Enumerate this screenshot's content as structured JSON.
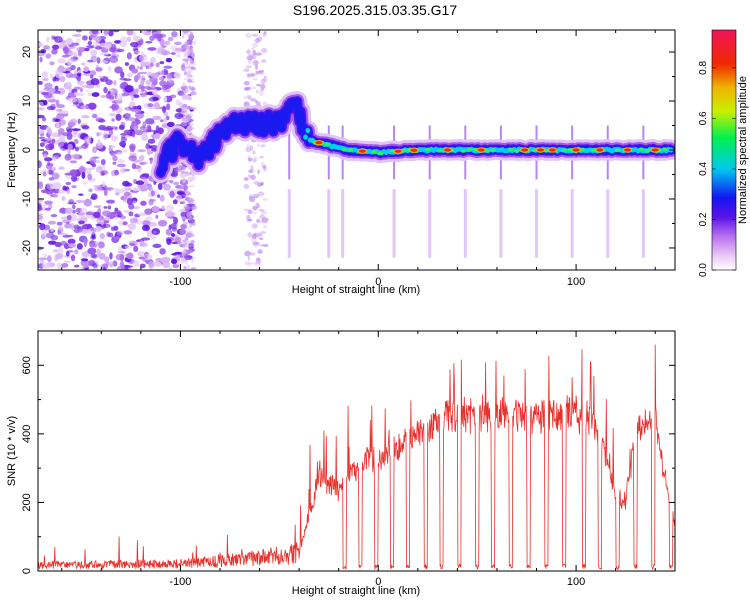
{
  "title": "S196.2025.315.03.35.G17",
  "chart_data": [
    {
      "type": "heatmap",
      "name": "spectrogram",
      "xlabel": "Height of straight line (km)",
      "ylabel": "Frequency (Hz)",
      "xlim": [
        -172,
        150
      ],
      "ylim": [
        -24.5,
        24.5
      ],
      "xticks": [
        -100,
        0,
        100
      ],
      "yticks": [
        -20,
        -10,
        0,
        10,
        20
      ],
      "colorbar": {
        "label": "Normalized spectral amplitude",
        "range": [
          0,
          0.95
        ],
        "ticks": [
          0.0,
          0.2,
          0.4,
          0.6,
          0.8
        ],
        "tick_labels": [
          "0.0",
          "0.2",
          "0.4",
          "0.6",
          "0.8"
        ]
      },
      "ridge": {
        "x": [
          -110,
          -100,
          -90,
          -80,
          -70,
          -60,
          -50,
          -42,
          -35,
          -25,
          -15,
          0,
          20,
          40,
          60,
          80,
          100,
          120,
          140,
          148
        ],
        "y": [
          -3,
          2,
          -2,
          3,
          6,
          5,
          6,
          9,
          2,
          1,
          0,
          -0.5,
          0,
          0,
          0,
          0,
          0,
          0,
          0,
          0
        ]
      },
      "noise_region_x": [
        -172,
        -100
      ],
      "vertical_spike_x": [
        -45,
        -25,
        -18,
        8,
        26,
        44,
        62,
        80,
        98,
        116,
        134
      ]
    },
    {
      "type": "line",
      "name": "snr",
      "xlabel": "Height of straight line (km)",
      "ylabel": "SNR (10 * v/v)",
      "xlim": [
        -172,
        150
      ],
      "ylim": [
        0,
        700
      ],
      "xticks": [
        -100,
        0,
        100
      ],
      "yticks": [
        0,
        200,
        400,
        600
      ],
      "color": "#e8302a",
      "envelope": {
        "x": [
          -172,
          -100,
          -90,
          -60,
          -40,
          -30,
          -20,
          -10,
          0,
          10,
          20,
          30,
          40,
          60,
          80,
          100,
          110,
          120,
          125,
          130,
          140,
          145,
          150
        ],
        "y": [
          20,
          25,
          30,
          45,
          60,
          300,
          260,
          340,
          360,
          390,
          440,
          480,
          500,
          500,
          500,
          500,
          480,
          250,
          220,
          450,
          500,
          300,
          150
        ]
      },
      "dropouts_x": [
        -17,
        -9,
        -1,
        7,
        15,
        24,
        32,
        41,
        50,
        58,
        67,
        76,
        85,
        94,
        104,
        112,
        121,
        130,
        139,
        148
      ]
    }
  ]
}
